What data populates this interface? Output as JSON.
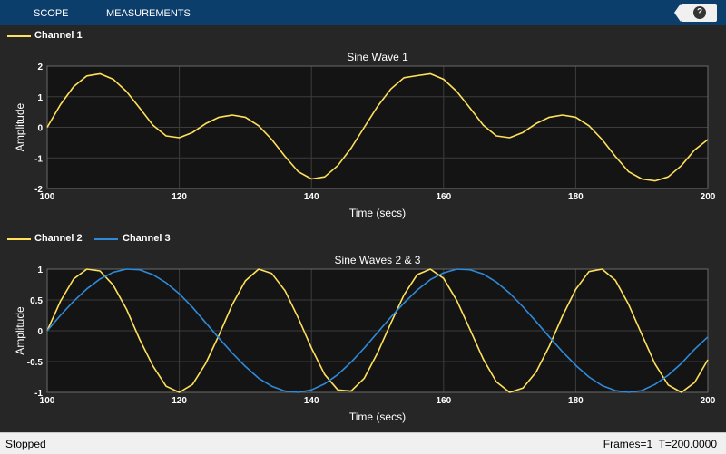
{
  "toolstrip": {
    "tabs": [
      {
        "label": "SCOPE"
      },
      {
        "label": "MEASUREMENTS"
      }
    ],
    "help_label": "?"
  },
  "legend1": {
    "items": [
      {
        "label": "Channel 1",
        "color": "#ffe15a"
      }
    ]
  },
  "legend2": {
    "items": [
      {
        "label": "Channel 2",
        "color": "#ffe15a"
      },
      {
        "label": "Channel 3",
        "color": "#2f8ad8"
      }
    ]
  },
  "status": {
    "left": "Stopped",
    "right": "Frames=1  T=200.0000"
  },
  "chart_data": [
    {
      "type": "line",
      "title": "Sine Wave 1",
      "xlabel": "Time (secs)",
      "ylabel": "Amplitude",
      "xlim": [
        100,
        200
      ],
      "ylim": [
        -2,
        2
      ],
      "xticks": [
        100,
        120,
        140,
        160,
        180,
        200
      ],
      "yticks": [
        -2,
        -1,
        0,
        1,
        2
      ],
      "grid": true,
      "background": "#141414",
      "series": [
        {
          "name": "Channel 1",
          "color": "#ffe15a",
          "x": [
            100,
            102,
            104,
            106,
            108,
            110,
            112,
            114,
            116,
            118,
            120,
            122,
            124,
            126,
            128,
            130,
            132,
            134,
            136,
            138,
            140,
            142,
            144,
            146,
            148,
            150,
            152,
            154,
            156,
            158,
            160,
            162,
            164,
            166,
            168,
            170,
            172,
            174,
            176,
            178,
            180,
            182,
            184,
            186,
            188,
            190,
            192,
            194,
            196,
            198,
            200
          ],
          "y": [
            0,
            0.74,
            1.33,
            1.68,
            1.75,
            1.57,
            1.17,
            0.63,
            0.07,
            -0.28,
            -0.34,
            -0.17,
            0.12,
            0.33,
            0.4,
            0.33,
            0.05,
            -0.4,
            -0.95,
            -1.45,
            -1.69,
            -1.62,
            -1.25,
            -0.68,
            0,
            0.68,
            1.25,
            1.62,
            1.69,
            1.75,
            1.57,
            1.17,
            0.63,
            0.07,
            -0.28,
            -0.34,
            -0.17,
            0.12,
            0.33,
            0.4,
            0.33,
            0.05,
            -0.4,
            -0.95,
            -1.45,
            -1.69,
            -1.75,
            -1.62,
            -1.25,
            -0.74,
            -0.4
          ]
        }
      ]
    },
    {
      "type": "line",
      "title": "Sine Waves 2 & 3",
      "xlabel": "Time (secs)",
      "ylabel": "Amplitude",
      "xlim": [
        100,
        200
      ],
      "ylim": [
        -1,
        1
      ],
      "xticks": [
        100,
        120,
        140,
        160,
        180,
        200
      ],
      "yticks": [
        -1,
        -0.5,
        0,
        0.5,
        1
      ],
      "grid": true,
      "background": "#141414",
      "series": [
        {
          "name": "Channel 2",
          "color": "#ffe15a",
          "x": [
            100,
            102,
            104,
            106,
            108,
            110,
            112,
            114,
            116,
            118,
            120,
            122,
            124,
            126,
            128,
            130,
            132,
            134,
            136,
            138,
            140,
            142,
            144,
            146,
            148,
            150,
            152,
            154,
            156,
            158,
            160,
            162,
            164,
            166,
            168,
            170,
            172,
            174,
            176,
            178,
            180,
            182,
            184,
            186,
            188,
            190,
            192,
            194,
            196,
            198,
            200
          ],
          "y": [
            0,
            0.48,
            0.84,
            1,
            0.97,
            0.74,
            0.35,
            -0.14,
            -0.57,
            -0.9,
            -1,
            -0.87,
            -0.53,
            -0.07,
            0.42,
            0.81,
            1,
            0.93,
            0.65,
            0.21,
            -0.28,
            -0.71,
            -0.96,
            -0.98,
            -0.77,
            -0.36,
            0.12,
            0.58,
            0.91,
            1,
            0.85,
            0.49,
            0.02,
            -0.46,
            -0.83,
            -1,
            -0.93,
            -0.67,
            -0.25,
            0.24,
            0.67,
            0.96,
            1,
            0.82,
            0.43,
            -0.06,
            -0.54,
            -0.88,
            -1,
            -0.84,
            -0.47
          ]
        },
        {
          "name": "Channel 3",
          "color": "#2f8ad8",
          "x": [
            100,
            102,
            104,
            106,
            108,
            110,
            112,
            114,
            116,
            118,
            120,
            122,
            124,
            126,
            128,
            130,
            132,
            134,
            136,
            138,
            140,
            142,
            144,
            146,
            148,
            150,
            152,
            154,
            156,
            158,
            160,
            162,
            164,
            166,
            168,
            170,
            172,
            174,
            176,
            178,
            180,
            182,
            184,
            186,
            188,
            190,
            192,
            194,
            196,
            198,
            200
          ],
          "y": [
            0,
            0.25,
            0.48,
            0.68,
            0.84,
            0.95,
            1,
            0.99,
            0.91,
            0.78,
            0.6,
            0.38,
            0.13,
            -0.12,
            -0.36,
            -0.58,
            -0.77,
            -0.9,
            -0.98,
            -1,
            -0.96,
            -0.86,
            -0.71,
            -0.51,
            -0.28,
            -0.03,
            0.22,
            0.45,
            0.66,
            0.83,
            0.94,
            1,
            0.99,
            0.92,
            0.79,
            0.61,
            0.39,
            0.15,
            -0.1,
            -0.34,
            -0.56,
            -0.75,
            -0.89,
            -0.97,
            -1,
            -0.97,
            -0.87,
            -0.72,
            -0.53,
            -0.3,
            -0.1
          ]
        }
      ]
    }
  ]
}
